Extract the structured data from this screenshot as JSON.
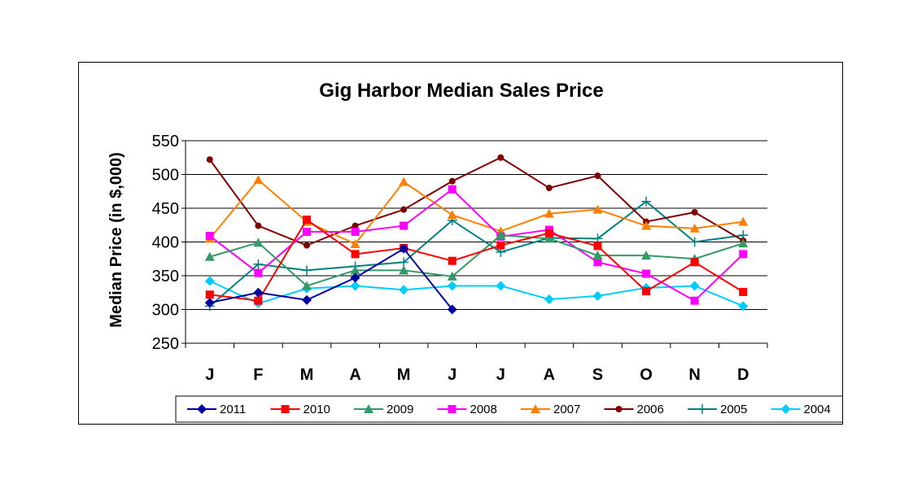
{
  "chart_data": {
    "type": "line",
    "title": "Gig Harbor Median Sales Price",
    "ylabel": "Median Price (in $,000)",
    "xlabel": "",
    "categories": [
      "J",
      "F",
      "M",
      "A",
      "M",
      "J",
      "J",
      "A",
      "S",
      "O",
      "N",
      "D"
    ],
    "ylim": [
      250,
      550
    ],
    "yticks": [
      250,
      300,
      350,
      400,
      450,
      500,
      550
    ],
    "grid": true,
    "legend_position": "bottom",
    "series": [
      {
        "name": "2011",
        "color": "#0000A0",
        "marker": "diamond",
        "values": [
          310,
          325,
          314,
          347,
          390,
          300,
          null,
          null,
          null,
          null,
          null,
          null
        ]
      },
      {
        "name": "2010",
        "color": "#FF0000",
        "marker": "square",
        "values": [
          322,
          313,
          433,
          382,
          391,
          372,
          395,
          413,
          394,
          327,
          370,
          326
        ]
      },
      {
        "name": "2009",
        "color": "#339966",
        "marker": "triangle",
        "values": [
          378,
          399,
          335,
          358,
          358,
          349,
          410,
          405,
          380,
          380,
          375,
          398
        ]
      },
      {
        "name": "2008",
        "color": "#FF00FF",
        "marker": "square",
        "values": [
          409,
          354,
          415,
          415,
          424,
          478,
          408,
          418,
          370,
          353,
          313,
          382
        ]
      },
      {
        "name": "2007",
        "color": "#FF8000",
        "marker": "triangle",
        "values": [
          405,
          492,
          430,
          397,
          489,
          440,
          416,
          442,
          448,
          424,
          420,
          430
        ]
      },
      {
        "name": "2006",
        "color": "#800000",
        "marker": "circle",
        "values": [
          522,
          424,
          395,
          424,
          448,
          490,
          525,
          480,
          498,
          430,
          444,
          402
        ]
      },
      {
        "name": "2005",
        "color": "#008080",
        "marker": "plus",
        "values": [
          305,
          367,
          358,
          364,
          370,
          432,
          385,
          406,
          405,
          460,
          400,
          410
        ]
      },
      {
        "name": "2004",
        "color": "#00CCFF",
        "marker": "diamond",
        "values": [
          342,
          309,
          331,
          335,
          329,
          335,
          335,
          315,
          320,
          332,
          335,
          305
        ]
      }
    ]
  }
}
